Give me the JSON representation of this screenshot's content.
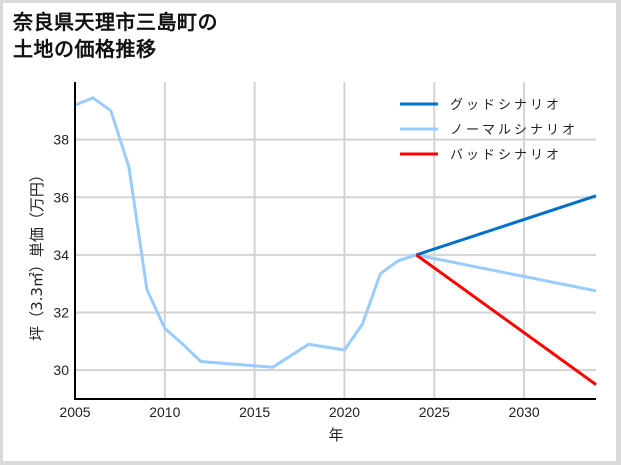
{
  "title": {
    "line1": "奈良県天理市三島町の",
    "line2": "土地の価格推移"
  },
  "chart_data": {
    "type": "line",
    "title": "奈良県天理市三島町の土地の価格推移",
    "xlabel": "年",
    "ylabel": "坪（3.3㎡）単価（万円）",
    "xlim": [
      2005,
      2034
    ],
    "ylim": [
      29.0,
      40.0
    ],
    "xticks": [
      2005,
      2010,
      2015,
      2020,
      2025,
      2030
    ],
    "yticks": [
      30,
      32,
      34,
      36,
      38
    ],
    "grid": true,
    "legend_position": "upper right",
    "series": [
      {
        "name": "グッドシナリオ",
        "color": "#0070C8",
        "x": [
          2024,
          2034
        ],
        "values": [
          34.0,
          36.05
        ]
      },
      {
        "name": "ノーマルシナリオ",
        "color": "#99CCFF",
        "x": [
          2005,
          2006,
          2007,
          2008,
          2009,
          2010,
          2011,
          2012,
          2013,
          2014,
          2015,
          2016,
          2017,
          2018,
          2019,
          2020,
          2021,
          2022,
          2023,
          2024,
          2034
        ],
        "values": [
          39.2,
          39.45,
          39.0,
          37.05,
          32.8,
          31.45,
          30.9,
          30.3,
          30.25,
          30.2,
          30.15,
          30.1,
          30.5,
          30.9,
          30.8,
          30.7,
          31.6,
          33.35,
          33.8,
          34.0,
          32.75
        ]
      },
      {
        "name": "バッドシナリオ",
        "color": "#FF0000",
        "x": [
          2024,
          2034
        ],
        "values": [
          34.0,
          29.5
        ]
      }
    ]
  }
}
